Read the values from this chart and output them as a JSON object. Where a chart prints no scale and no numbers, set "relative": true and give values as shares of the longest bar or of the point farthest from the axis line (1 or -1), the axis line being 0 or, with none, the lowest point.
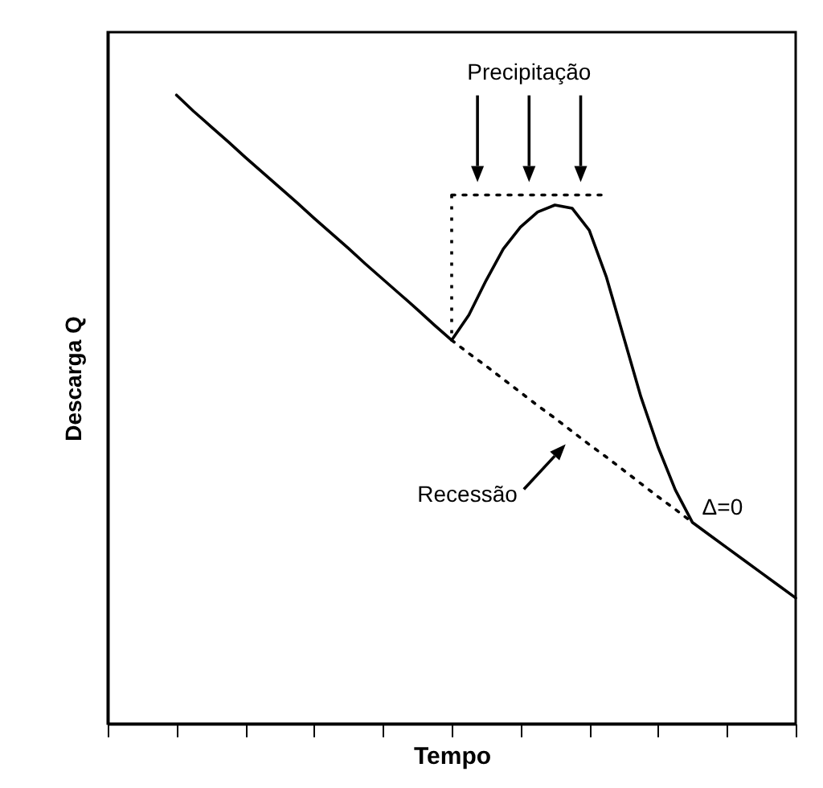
{
  "chart_data": {
    "type": "line",
    "relative": true,
    "xlabel": "Tempo",
    "ylabel": "Descarga Q",
    "tick_labels": false,
    "grid": false,
    "categories": [
      null,
      null,
      null,
      null,
      null,
      null,
      null,
      null,
      null,
      null,
      null,
      null,
      null,
      null,
      null,
      null,
      null,
      null,
      null,
      null,
      null,
      null,
      null,
      null,
      null,
      null,
      null,
      null,
      null,
      null,
      null,
      null,
      null,
      null,
      null,
      null,
      null,
      null,
      null,
      null,
      null
    ],
    "series": [
      {
        "color": "#000000",
        "line_style": "solid",
        "values": [
          null,
          null,
          null,
          null,
          1,
          0.974,
          0.95,
          0.926,
          0.901,
          0.877,
          0.853,
          0.829,
          0.804,
          0.78,
          0.756,
          0.731,
          0.707,
          0.683,
          0.659,
          0.634,
          0.61,
          0.65,
          0.705,
          0.755,
          0.79,
          0.814,
          0.825,
          0.82,
          0.785,
          0.71,
          0.615,
          0.52,
          0.44,
          0.372,
          0.32,
          0.3,
          0.28,
          0.26,
          0.24,
          0.22,
          0.2
        ]
      },
      {
        "color": "#000000",
        "line_style": "dotted",
        "values": [
          null,
          null,
          null,
          null,
          null,
          null,
          null,
          null,
          null,
          null,
          null,
          null,
          null,
          null,
          null,
          null,
          null,
          null,
          null,
          null,
          0.61,
          0.589,
          0.569,
          0.548,
          0.527,
          0.506,
          0.486,
          0.465,
          0.444,
          0.424,
          0.403,
          0.382,
          0.361,
          0.341,
          0.32,
          null,
          null,
          null,
          null,
          null,
          null
        ]
      },
      {
        "color": "#000000",
        "line_style": "dotted",
        "values": [
          null,
          null,
          null,
          null,
          null,
          null,
          null,
          null,
          null,
          null,
          null,
          null,
          null,
          null,
          null,
          null,
          null,
          null,
          null,
          null,
          0.841,
          0.841,
          0.841,
          0.841,
          0.841,
          0.841,
          0.841,
          0.841,
          0.841,
          0.841,
          null,
          null,
          null,
          null,
          null,
          null,
          null,
          null,
          null,
          null,
          null
        ]
      }
    ],
    "annotations": [
      "Precipitação",
      "Recessão",
      "Δ=0"
    ]
  }
}
